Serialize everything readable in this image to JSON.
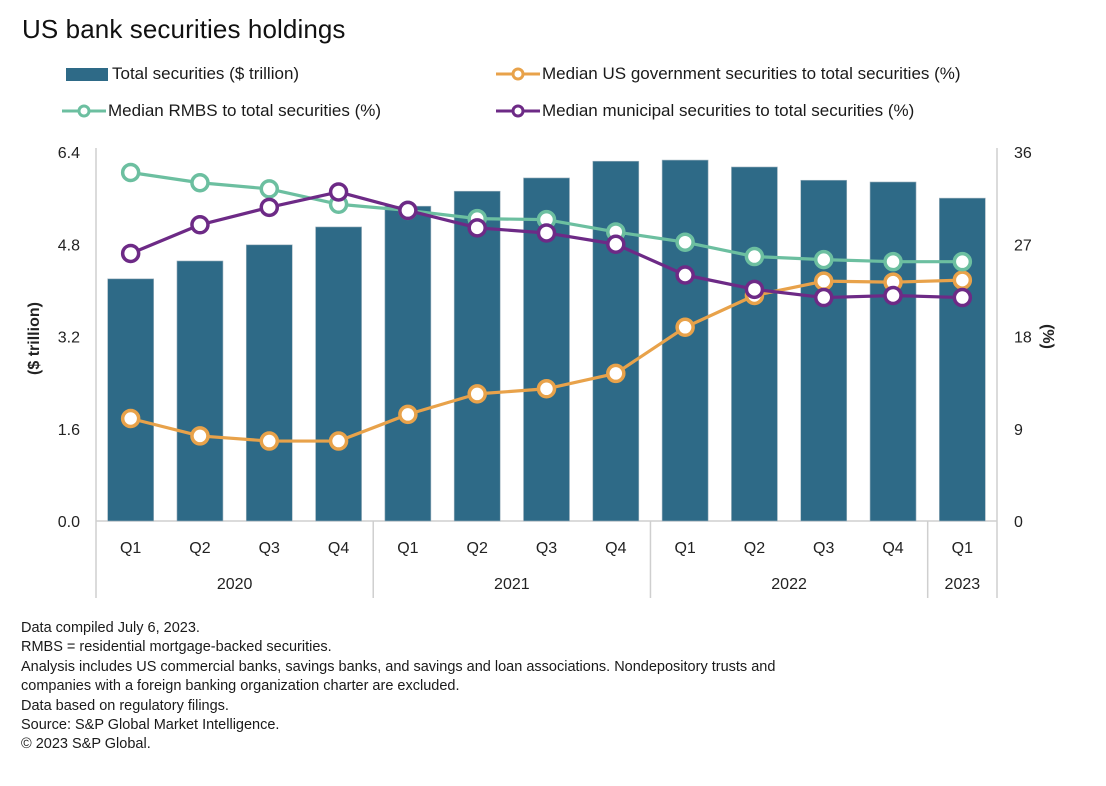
{
  "title": "US bank securities holdings",
  "legend": [
    {
      "label": "Total securities ($ trillion)",
      "type": "bar",
      "color": "#2e6a87"
    },
    {
      "label": "Median US government securities to total securities (%)",
      "type": "line",
      "color": "#e8a24a"
    },
    {
      "label": "Median RMBS to total securities (%)",
      "type": "line",
      "color": "#6cbfa0"
    },
    {
      "label": "Median municipal securities to total securities (%)",
      "type": "line",
      "color": "#6d2a86"
    }
  ],
  "footnotes": [
    "Data compiled July 6, 2023.",
    "RMBS = residential mortgage-backed securities.",
    "Analysis includes US commercial banks, savings banks, and savings and loan associations. Nondepository trusts and",
    "companies with a foreign banking organization charter are excluded.",
    "Data based on regulatory filings.",
    "Source: S&P Global Market Intelligence.",
    "© 2023 S&P Global."
  ],
  "chart_data": {
    "type": "bar",
    "title": "US bank securities holdings",
    "categories": [
      "Q1",
      "Q2",
      "Q3",
      "Q4",
      "Q1",
      "Q2",
      "Q3",
      "Q4",
      "Q1",
      "Q2",
      "Q3",
      "Q4",
      "Q1"
    ],
    "year_groups": [
      {
        "label": "2020",
        "count": 4
      },
      {
        "label": "2021",
        "count": 4
      },
      {
        "label": "2022",
        "count": 4
      },
      {
        "label": "2023",
        "count": 1
      }
    ],
    "ylabel": "($ trillion)",
    "ylabel_right": "(%)",
    "ylim": [
      0,
      6.4
    ],
    "ylim_right": [
      0,
      36
    ],
    "yticks": [
      "0.0",
      "1.6",
      "3.2",
      "4.8",
      "6.4"
    ],
    "yticks_values": [
      0,
      1.6,
      3.2,
      4.8,
      6.4
    ],
    "yticks_right": [
      "0",
      "9",
      "18",
      "27",
      "36"
    ],
    "yticks_right_values": [
      0,
      9,
      18,
      27,
      36
    ],
    "grid": false,
    "legend_position": "top",
    "series": [
      {
        "name": "Total securities ($ trillion)",
        "type": "bar",
        "axis": "left",
        "color": "#2e6a87",
        "values": [
          4.2,
          4.51,
          4.79,
          5.1,
          5.46,
          5.72,
          5.95,
          6.24,
          6.26,
          6.14,
          5.91,
          5.88,
          5.6
        ]
      },
      {
        "name": "Median US government securities to total securities (%)",
        "type": "line",
        "axis": "right",
        "color": "#e8a24a",
        "values": [
          10.0,
          8.3,
          7.8,
          7.8,
          10.4,
          12.4,
          12.9,
          14.4,
          18.9,
          22.0,
          23.4,
          23.3,
          23.5
        ]
      },
      {
        "name": "Median RMBS to total securities (%)",
        "type": "line",
        "axis": "right",
        "color": "#6cbfa0",
        "values": [
          34.0,
          33.0,
          32.4,
          30.9,
          30.3,
          29.5,
          29.4,
          28.2,
          27.2,
          25.8,
          25.5,
          25.3,
          25.3
        ]
      },
      {
        "name": "Median municipal securities to total securities (%)",
        "type": "line",
        "axis": "right",
        "color": "#6d2a86",
        "values": [
          26.1,
          28.9,
          30.6,
          32.1,
          30.3,
          28.6,
          28.1,
          27.0,
          24.0,
          22.6,
          21.8,
          22.0,
          21.8
        ]
      }
    ]
  }
}
